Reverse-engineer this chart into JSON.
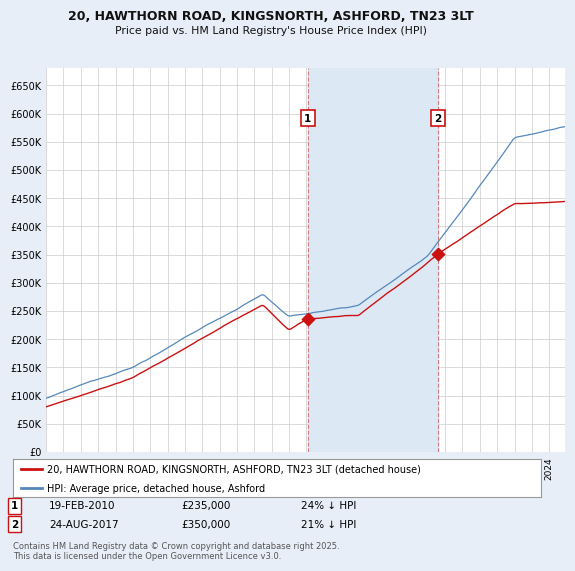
{
  "title_line1": "20, HAWTHORN ROAD, KINGSNORTH, ASHFORD, TN23 3LT",
  "title_line2": "Price paid vs. HM Land Registry's House Price Index (HPI)",
  "ylim": [
    0,
    680000
  ],
  "yticks": [
    0,
    50000,
    100000,
    150000,
    200000,
    250000,
    300000,
    350000,
    400000,
    450000,
    500000,
    550000,
    600000,
    650000
  ],
  "ytick_labels": [
    "£0",
    "£50K",
    "£100K",
    "£150K",
    "£200K",
    "£250K",
    "£300K",
    "£350K",
    "£400K",
    "£450K",
    "£500K",
    "£550K",
    "£600K",
    "£650K"
  ],
  "hpi_color": "#5588bb",
  "price_color": "#cc1111",
  "marker1_date_str": "19-FEB-2010",
  "marker1_price": 235000,
  "marker1_pct": "24% ↓ HPI",
  "marker2_date_str": "24-AUG-2017",
  "marker2_price": 350000,
  "marker2_pct": "21% ↓ HPI",
  "legend_line1": "20, HAWTHORN ROAD, KINGSNORTH, ASHFORD, TN23 3LT (detached house)",
  "legend_line2": "HPI: Average price, detached house, Ashford",
  "footnote": "Contains HM Land Registry data © Crown copyright and database right 2025.\nThis data is licensed under the Open Government Licence v3.0.",
  "bg_color": "#e8eef8",
  "plot_bg": "#ffffff",
  "span_color": "#dde8f5"
}
